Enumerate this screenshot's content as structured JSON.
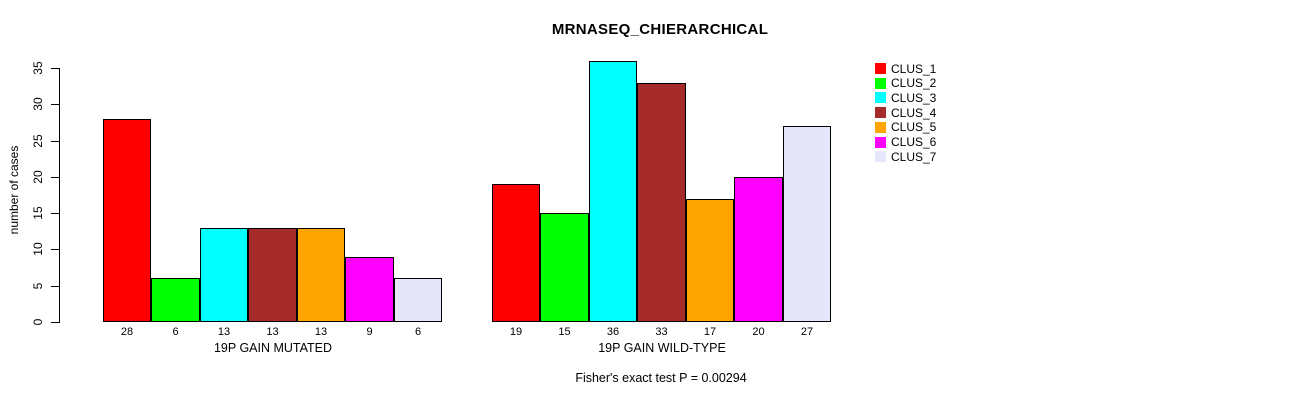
{
  "title": "MRNASEQ_CHIERARCHICAL",
  "footer": "Fisher's exact test P = 0.00294",
  "chart_data": {
    "type": "bar",
    "title": "MRNASEQ_CHIERARCHICAL",
    "xlabel": "",
    "ylabel": "number of cases",
    "ylim": [
      0,
      35
    ],
    "yticks": [
      0,
      5,
      10,
      15,
      20,
      25,
      30,
      35
    ],
    "grid": false,
    "legend_position": "right",
    "bar_value_labels": true,
    "annotation": "Fisher's exact test P = 0.00294",
    "categories": [
      "19P GAIN MUTATED",
      "19P GAIN WILD-TYPE"
    ],
    "series": [
      {
        "name": "CLUS_1",
        "color": "#FF0000",
        "values": [
          28,
          19
        ]
      },
      {
        "name": "CLUS_2",
        "color": "#00FF00",
        "values": [
          6,
          15
        ]
      },
      {
        "name": "CLUS_3",
        "color": "#00FFFF",
        "values": [
          13,
          36
        ]
      },
      {
        "name": "CLUS_4",
        "color": "#A52A2A",
        "values": [
          13,
          33
        ]
      },
      {
        "name": "CLUS_5",
        "color": "#FFA500",
        "values": [
          13,
          17
        ]
      },
      {
        "name": "CLUS_6",
        "color": "#FF00FF",
        "values": [
          9,
          20
        ]
      },
      {
        "name": "CLUS_7",
        "color": "#E6E6FA",
        "values": [
          6,
          27
        ]
      }
    ]
  }
}
